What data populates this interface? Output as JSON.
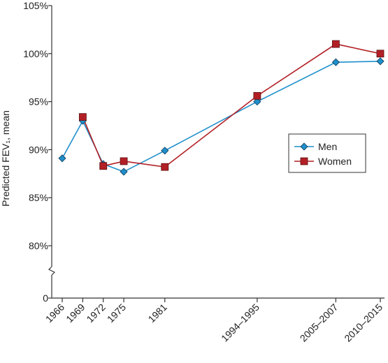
{
  "chart_data": {
    "type": "line",
    "title": "",
    "xlabel": "",
    "ylabel": "Predicted FEV₁, mean",
    "x": [
      "1966",
      "1969",
      "1972",
      "1975",
      "1981",
      "1994–1995",
      "2005–2007",
      "2010–2015"
    ],
    "x_positions": [
      1966,
      1969,
      1972,
      1975,
      1981,
      1994.5,
      2006,
      2012.5
    ],
    "y_ticks": [
      "0",
      "80%",
      "85%",
      "90%",
      "95%",
      "100%",
      "105%"
    ],
    "y_tick_values": [
      0,
      80,
      85,
      90,
      95,
      100,
      105
    ],
    "ylim": [
      80,
      105
    ],
    "axis_break": true,
    "grid": false,
    "legend_position": "right-middle",
    "series": [
      {
        "name": "Men",
        "color": "#1f8fcc",
        "marker": "diamond",
        "values": [
          89.1,
          93.0,
          88.5,
          87.7,
          89.9,
          95.0,
          99.1,
          99.2
        ]
      },
      {
        "name": "Women",
        "color": "#b22025",
        "marker": "square",
        "values": [
          null,
          93.4,
          88.3,
          88.8,
          88.2,
          95.6,
          101.0,
          100.0
        ]
      }
    ]
  }
}
